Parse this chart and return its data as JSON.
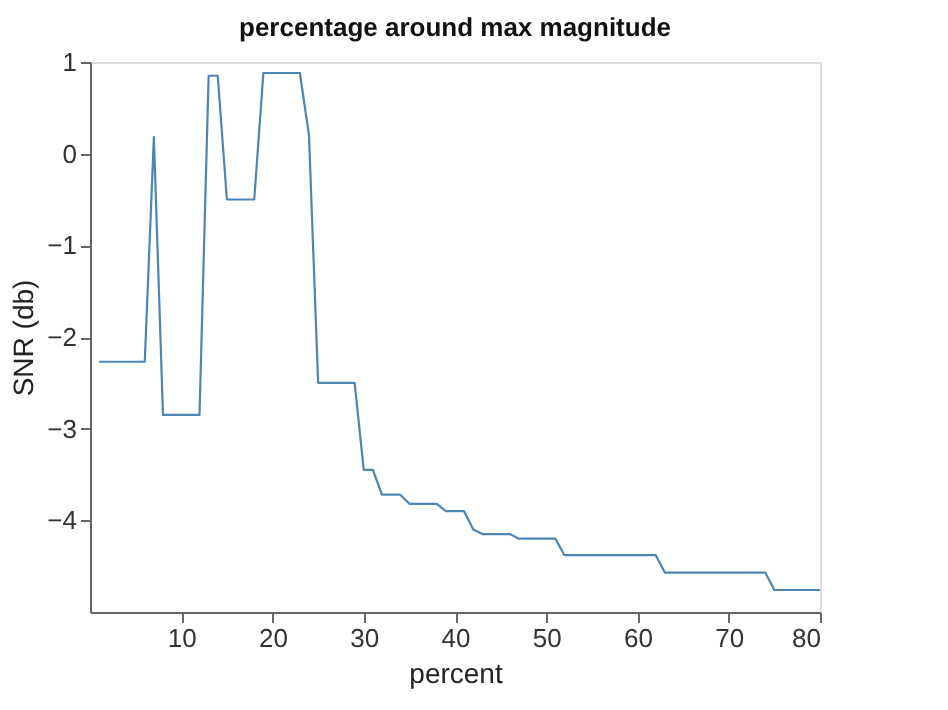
{
  "chart_data": {
    "type": "line",
    "title": "percentage around max magnitude",
    "xlabel": "percent",
    "ylabel": "SNR (db)",
    "x": [
      1,
      2,
      3,
      4,
      5,
      6,
      7,
      8,
      9,
      10,
      11,
      12,
      13,
      14,
      15,
      16,
      17,
      18,
      19,
      20,
      21,
      22,
      23,
      24,
      25,
      26,
      27,
      28,
      29,
      30,
      31,
      32,
      33,
      34,
      35,
      36,
      37,
      38,
      39,
      40,
      41,
      42,
      43,
      44,
      45,
      46,
      47,
      48,
      49,
      50,
      51,
      52,
      53,
      54,
      55,
      56,
      57,
      58,
      59,
      60,
      61,
      62,
      63,
      64,
      65,
      66,
      67,
      68,
      69,
      70,
      71,
      72,
      73,
      74,
      75,
      76,
      77,
      78,
      79,
      80
    ],
    "series": [
      {
        "color": "#4d86b3",
        "values": [
          -2.27,
          -2.27,
          -2.27,
          -2.27,
          -2.27,
          -2.27,
          0.18,
          -2.85,
          -2.85,
          -2.85,
          -2.85,
          -2.85,
          0.85,
          0.85,
          -0.5,
          -0.5,
          -0.5,
          -0.5,
          0.88,
          0.88,
          0.88,
          0.88,
          0.88,
          0.2,
          -2.5,
          -2.5,
          -2.5,
          -2.5,
          -2.5,
          -3.45,
          -3.45,
          -3.72,
          -3.72,
          -3.72,
          -3.82,
          -3.82,
          -3.82,
          -3.82,
          -3.9,
          -3.9,
          -3.9,
          -4.1,
          -4.15,
          -4.15,
          -4.15,
          -4.15,
          -4.2,
          -4.2,
          -4.2,
          -4.2,
          -4.2,
          -4.38,
          -4.38,
          -4.38,
          -4.38,
          -4.38,
          -4.38,
          -4.38,
          -4.38,
          -4.38,
          -4.38,
          -4.38,
          -4.57,
          -4.57,
          -4.57,
          -4.57,
          -4.57,
          -4.57,
          -4.57,
          -4.57,
          -4.57,
          -4.57,
          -4.57,
          -4.57,
          -4.76,
          -4.76,
          -4.76,
          -4.76,
          -4.76,
          -4.76
        ]
      }
    ],
    "xlim": [
      0,
      80
    ],
    "xticks": [
      10,
      20,
      30,
      40,
      50,
      60,
      70,
      80
    ],
    "ylim": [
      -5,
      1
    ],
    "yticks": [
      -4,
      -3,
      -2,
      -1,
      0,
      1
    ],
    "grid": false,
    "legend": false,
    "marker": "none",
    "line_style": "solid"
  }
}
